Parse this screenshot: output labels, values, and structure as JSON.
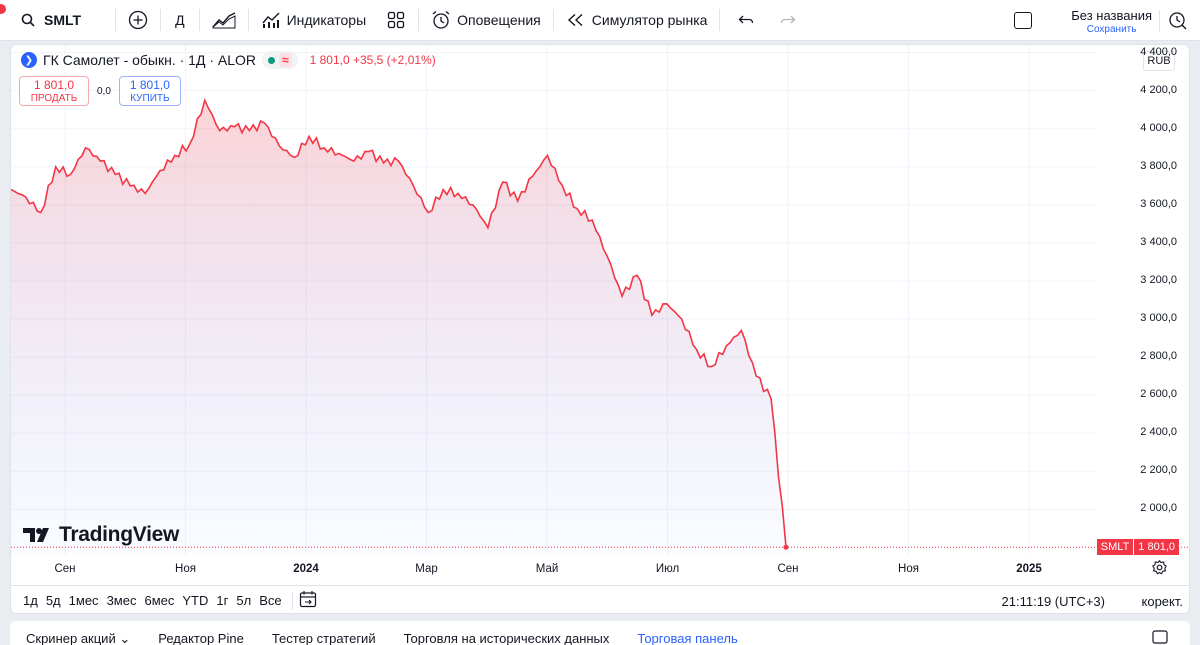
{
  "toolbar": {
    "symbol": "SMLT",
    "interval": "Д",
    "indicators": "Индикаторы",
    "alerts": "Оповещения",
    "replay": "Симулятор рынка",
    "layout_name": "Без названия",
    "layout_saved": "Сохранить"
  },
  "legend": {
    "title": "ГК Самолет - обыкн. · 1Д · ALOR",
    "values": "1 801,0 +35,5 (+2,01%)",
    "badge": "≈"
  },
  "trade": {
    "sell_price": "1 801,0",
    "sell_label": "ПРОДАТЬ",
    "spread": "0,0",
    "buy_price": "1 801,0",
    "buy_label": "КУПИТЬ"
  },
  "currency": "RUB",
  "brand": "TradingView",
  "price_tag": {
    "symbol": "SMLT",
    "price": "1 801,0"
  },
  "colors": {
    "line": "#f23645",
    "accent": "#2962ff"
  },
  "chart_data": {
    "type": "area",
    "yticks": [
      "4 400,0",
      "4 200,0",
      "4 000,0",
      "3 800,0",
      "3 600,0",
      "3 400,0",
      "3 200,0",
      "3 000,0",
      "2 800,0",
      "2 600,0",
      "2 400,0",
      "2 200,0",
      "2 000,0"
    ],
    "ylim": [
      1760,
      4440
    ],
    "xticks": [
      {
        "label": "Сен",
        "bold": false
      },
      {
        "label": "Ноя",
        "bold": false
      },
      {
        "label": "2024",
        "bold": true
      },
      {
        "label": "Мар",
        "bold": false
      },
      {
        "label": "Май",
        "bold": false
      },
      {
        "label": "Июл",
        "bold": false
      },
      {
        "label": "Сен",
        "bold": false
      },
      {
        "label": "Ноя",
        "bold": false
      },
      {
        "label": "2025",
        "bold": true
      }
    ],
    "x": [
      "2023-08",
      "2023-08",
      "2023-08",
      "2023-09",
      "2023-09",
      "2023-09",
      "2023-09",
      "2023-10",
      "2023-10",
      "2023-10",
      "2023-10",
      "2023-10",
      "2023-11",
      "2023-11",
      "2023-11",
      "2023-11",
      "2023-12",
      "2023-12",
      "2023-12",
      "2023-12",
      "2024-01",
      "2024-01",
      "2024-01",
      "2024-01",
      "2024-02",
      "2024-02",
      "2024-02",
      "2024-02",
      "2024-03",
      "2024-03",
      "2024-03",
      "2024-03",
      "2024-04",
      "2024-04",
      "2024-04",
      "2024-04",
      "2024-05",
      "2024-05",
      "2024-05",
      "2024-05",
      "2024-06",
      "2024-06",
      "2024-06",
      "2024-06",
      "2024-07",
      "2024-07",
      "2024-07",
      "2024-07",
      "2024-08",
      "2024-08",
      "2024-08",
      "2024-08",
      "2024-09"
    ],
    "values": [
      3680,
      3640,
      3560,
      3800,
      3760,
      3900,
      3830,
      3760,
      3700,
      3660,
      3780,
      3860,
      3920,
      4150,
      3990,
      4010,
      3990,
      4030,
      3910,
      3850,
      3960,
      3900,
      3870,
      3830,
      3880,
      3820,
      3830,
      3700,
      3560,
      3680,
      3660,
      3600,
      3480,
      3720,
      3620,
      3750,
      3860,
      3700,
      3580,
      3520,
      3330,
      3120,
      3230,
      3020,
      3080,
      3000,
      2840,
      2750,
      2860,
      2940,
      2700,
      2580,
      1801
    ],
    "series": [
      {
        "values": [
          3680,
          3640,
          3560,
          3800,
          3760,
          3900,
          3830,
          3760,
          3700,
          3660,
          3780,
          3860,
          3920,
          4150,
          3990,
          4010,
          3990,
          4030,
          3910,
          3850,
          3960,
          3900,
          3870,
          3830,
          3880,
          3820,
          3830,
          3700,
          3560,
          3680,
          3660,
          3600,
          3480,
          3720,
          3620,
          3750,
          3860,
          3700,
          3580,
          3520,
          3330,
          3120,
          3230,
          3020,
          3080,
          3000,
          2840,
          2750,
          2860,
          2940,
          2700,
          2580,
          1801
        ]
      }
    ]
  },
  "ranges": [
    "1д",
    "5д",
    "1мес",
    "3мес",
    "6мес",
    "YTD",
    "1г",
    "5л",
    "Все"
  ],
  "clock": "21:11:19 (UTC+3)",
  "correction": "корект.",
  "bottom_tabs": [
    "Скринер акций",
    "Редактор Pine",
    "Тестер стратегий",
    "Торговля на исторических данных",
    "Торговая панель"
  ]
}
